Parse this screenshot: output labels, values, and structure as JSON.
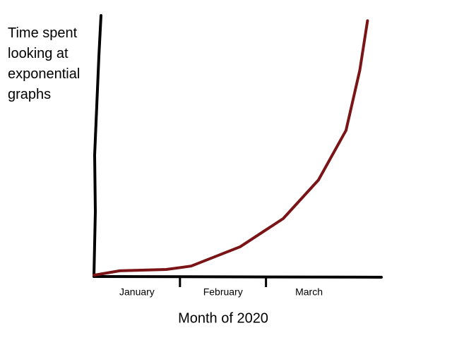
{
  "chart_data": {
    "type": "line",
    "ylabel": "Time spent looking at exponential graphs",
    "xlabel": "Month of 2020",
    "x": [
      0,
      0.3,
      0.84,
      1.13,
      1.7,
      2.2,
      2.61,
      2.93,
      3.09,
      3.18
    ],
    "series": [
      {
        "color": "#7a1416",
        "values": [
          0.5,
          2.2,
          2.7,
          4,
          11.4,
          22.2,
          37,
          56,
          79,
          98
        ]
      }
    ],
    "xlim": [
      0,
      3.3
    ],
    "ylim": [
      0,
      100
    ],
    "xticks": [
      {
        "value": 0.5,
        "label": "January"
      },
      {
        "value": 1.5,
        "label": "February"
      },
      {
        "value": 2.5,
        "label": "March"
      }
    ],
    "xtick_marks": [
      1,
      2
    ],
    "grid": false
  }
}
